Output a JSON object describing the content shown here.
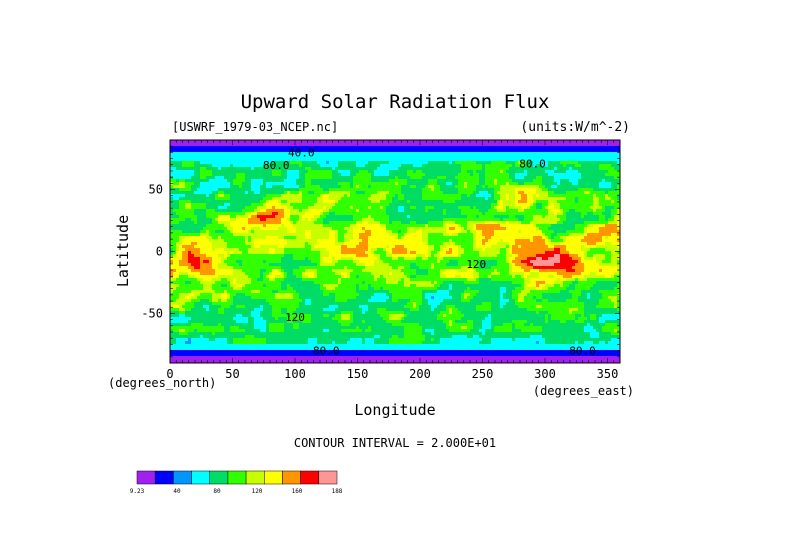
{
  "chart_data": {
    "type": "heatmap",
    "title": "Upward Solar Radiation Flux",
    "source_label": "[USWRF_1979-03_NCEP.nc]",
    "units_label": "(units:W/m^-2)",
    "xlabel": "Longitude",
    "ylabel": "Latitude",
    "x_unit_label": "(degrees_east)",
    "y_unit_label": "(degrees_north)",
    "xlim": [
      0,
      360
    ],
    "ylim": [
      -90,
      90
    ],
    "x_ticks": [
      0,
      50,
      100,
      150,
      200,
      250,
      300,
      350
    ],
    "y_ticks": [
      50,
      0,
      -50
    ],
    "contour_interval_label": "CONTOUR INTERVAL = 2.000E+01",
    "contour_labels": [
      {
        "text": "40.0",
        "lon": 105,
        "lat": 80
      },
      {
        "text": "80.0",
        "lon": 85,
        "lat": 70
      },
      {
        "text": "80.0",
        "lon": 290,
        "lat": 71
      },
      {
        "text": "120",
        "lon": 245,
        "lat": -10
      },
      {
        "text": "120",
        "lon": 100,
        "lat": -53
      },
      {
        "text": "80.0",
        "lon": 125,
        "lat": -80
      },
      {
        "text": "80.0",
        "lon": 330,
        "lat": -80
      }
    ],
    "colorbar": {
      "tick_labels": [
        "9.23",
        "40",
        "80",
        "120",
        "160",
        "188"
      ],
      "colors": [
        "#a020f0",
        "#0000ff",
        "#0096ff",
        "#00ffff",
        "#00dc64",
        "#32ff00",
        "#c8ff00",
        "#ffff00",
        "#ff9600",
        "#ff0000",
        "#ff9696"
      ]
    }
  }
}
